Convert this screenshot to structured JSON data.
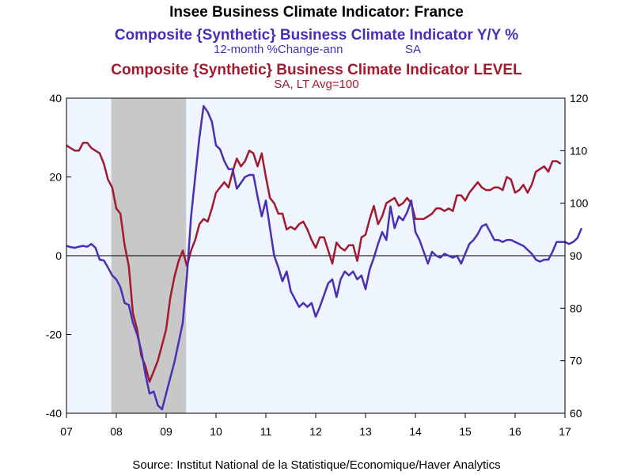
{
  "chart_data": {
    "type": "line",
    "title": "Insee Business Climate Indicator: France",
    "series": [
      {
        "name": "Composite {Synthetic} Business Climate Indicator Y/Y %",
        "subtitle_left": "12-month %Change-ann",
        "subtitle_right": "SA",
        "axis": "left",
        "color": "#4a2fb5",
        "values": [
          [
            2007.0,
            2.5
          ],
          [
            2007.083,
            2.2
          ],
          [
            2007.167,
            2.0
          ],
          [
            2007.25,
            2.3
          ],
          [
            2007.333,
            2.5
          ],
          [
            2007.417,
            2.3
          ],
          [
            2007.5,
            3.0
          ],
          [
            2007.583,
            2.0
          ],
          [
            2007.667,
            -1.0
          ],
          [
            2007.75,
            -1.2
          ],
          [
            2007.833,
            -3.0
          ],
          [
            2007.917,
            -5.0
          ],
          [
            2008.0,
            -6.0
          ],
          [
            2008.083,
            -8.0
          ],
          [
            2008.167,
            -12.0
          ],
          [
            2008.25,
            -12.5
          ],
          [
            2008.333,
            -17.0
          ],
          [
            2008.417,
            -20.0
          ],
          [
            2008.5,
            -24.0
          ],
          [
            2008.583,
            -30.0
          ],
          [
            2008.667,
            -35.0
          ],
          [
            2008.75,
            -34.5
          ],
          [
            2008.833,
            -38.0
          ],
          [
            2008.917,
            -39.0
          ],
          [
            2009.0,
            -35.0
          ],
          [
            2009.083,
            -31.0
          ],
          [
            2009.167,
            -27.0
          ],
          [
            2009.25,
            -22.0
          ],
          [
            2009.333,
            -17.0
          ],
          [
            2009.417,
            -5.0
          ],
          [
            2009.5,
            10.0
          ],
          [
            2009.583,
            20.0
          ],
          [
            2009.667,
            30.0
          ],
          [
            2009.75,
            38.0
          ],
          [
            2009.833,
            36.5
          ],
          [
            2009.917,
            34.0
          ],
          [
            2010.0,
            28.0
          ],
          [
            2010.083,
            27.0
          ],
          [
            2010.167,
            24.0
          ],
          [
            2010.25,
            22.0
          ],
          [
            2010.333,
            22.0
          ],
          [
            2010.417,
            17.0
          ],
          [
            2010.5,
            18.5
          ],
          [
            2010.583,
            20.0
          ],
          [
            2010.667,
            20.5
          ],
          [
            2010.75,
            20.5
          ],
          [
            2010.833,
            15.0
          ],
          [
            2010.917,
            10.0
          ],
          [
            2011.0,
            14.0
          ],
          [
            2011.083,
            7.0
          ],
          [
            2011.167,
            0.0
          ],
          [
            2011.25,
            -3.0
          ],
          [
            2011.333,
            -6.5
          ],
          [
            2011.417,
            -4.0
          ],
          [
            2011.5,
            -9.0
          ],
          [
            2011.583,
            -11.0
          ],
          [
            2011.667,
            -13.0
          ],
          [
            2011.75,
            -12.0
          ],
          [
            2011.833,
            -13.0
          ],
          [
            2011.917,
            -12.0
          ],
          [
            2012.0,
            -15.5
          ],
          [
            2012.083,
            -13.0
          ],
          [
            2012.167,
            -10.0
          ],
          [
            2012.25,
            -7.0
          ],
          [
            2012.333,
            -6.0
          ],
          [
            2012.417,
            -10.5
          ],
          [
            2012.5,
            -6.0
          ],
          [
            2012.583,
            -4.0
          ],
          [
            2012.667,
            -5.0
          ],
          [
            2012.75,
            -4.0
          ],
          [
            2012.833,
            -6.0
          ],
          [
            2012.917,
            -5.0
          ],
          [
            2013.0,
            -8.5
          ],
          [
            2013.083,
            -3.5
          ],
          [
            2013.167,
            -0.5
          ],
          [
            2013.25,
            3.0
          ],
          [
            2013.333,
            6.0
          ],
          [
            2013.417,
            4.0
          ],
          [
            2013.5,
            12.5
          ],
          [
            2013.583,
            7.0
          ],
          [
            2013.667,
            10.0
          ],
          [
            2013.75,
            9.0
          ],
          [
            2013.833,
            11.0
          ],
          [
            2013.917,
            14.0
          ],
          [
            2014.0,
            6.0
          ],
          [
            2014.083,
            4.0
          ],
          [
            2014.167,
            1.0
          ],
          [
            2014.25,
            -2.0
          ],
          [
            2014.333,
            1.0
          ],
          [
            2014.417,
            0.0
          ],
          [
            2014.5,
            -0.5
          ],
          [
            2014.583,
            0.5
          ],
          [
            2014.667,
            0.0
          ],
          [
            2014.75,
            -0.5
          ],
          [
            2014.833,
            0.0
          ],
          [
            2014.917,
            -2.0
          ],
          [
            2015.0,
            0.5
          ],
          [
            2015.083,
            3.0
          ],
          [
            2015.167,
            4.0
          ],
          [
            2015.25,
            5.5
          ],
          [
            2015.333,
            7.5
          ],
          [
            2015.417,
            8.0
          ],
          [
            2015.5,
            6.0
          ],
          [
            2015.583,
            4.0
          ],
          [
            2015.667,
            4.0
          ],
          [
            2015.75,
            3.5
          ],
          [
            2015.833,
            4.0
          ],
          [
            2015.917,
            4.0
          ],
          [
            2016.0,
            3.5
          ],
          [
            2016.083,
            3.0
          ],
          [
            2016.167,
            2.5
          ],
          [
            2016.25,
            1.5
          ],
          [
            2016.333,
            0.5
          ],
          [
            2016.417,
            -1.0
          ],
          [
            2016.5,
            -1.5
          ],
          [
            2016.583,
            -1.0
          ],
          [
            2016.667,
            -1.0
          ],
          [
            2016.75,
            1.0
          ],
          [
            2016.833,
            3.5
          ],
          [
            2016.917,
            3.5
          ],
          [
            2017.0,
            3.5
          ],
          [
            2017.083,
            3.0
          ],
          [
            2017.167,
            3.5
          ],
          [
            2017.25,
            4.5
          ],
          [
            2017.333,
            7.0
          ]
        ]
      },
      {
        "name": "Composite {Synthetic} Business Climate Indicator LEVEL",
        "subtitle": "SA, LT Avg=100",
        "axis": "right",
        "color": "#a3192e",
        "values": [
          [
            2007.0,
            111.0
          ],
          [
            2007.083,
            110.5
          ],
          [
            2007.167,
            110.0
          ],
          [
            2007.25,
            110.0
          ],
          [
            2007.333,
            111.5
          ],
          [
            2007.417,
            111.5
          ],
          [
            2007.5,
            110.5
          ],
          [
            2007.583,
            110.0
          ],
          [
            2007.667,
            109.5
          ],
          [
            2007.75,
            107.5
          ],
          [
            2007.833,
            104.5
          ],
          [
            2007.917,
            103.0
          ],
          [
            2008.0,
            99.0
          ],
          [
            2008.083,
            98.0
          ],
          [
            2008.167,
            92.0
          ],
          [
            2008.25,
            88.0
          ],
          [
            2008.333,
            79.0
          ],
          [
            2008.417,
            76.0
          ],
          [
            2008.5,
            71.0
          ],
          [
            2008.583,
            69.0
          ],
          [
            2008.667,
            66.0
          ],
          [
            2008.75,
            68.0
          ],
          [
            2008.833,
            70.0
          ],
          [
            2008.917,
            73.0
          ],
          [
            2009.0,
            76.0
          ],
          [
            2009.083,
            82.0
          ],
          [
            2009.167,
            86.0
          ],
          [
            2009.25,
            89.0
          ],
          [
            2009.333,
            91.0
          ],
          [
            2009.417,
            88.0
          ],
          [
            2009.5,
            91.0
          ],
          [
            2009.583,
            93.0
          ],
          [
            2009.667,
            96.0
          ],
          [
            2009.75,
            97.0
          ],
          [
            2009.833,
            96.5
          ],
          [
            2009.917,
            99.0
          ],
          [
            2010.0,
            102.0
          ],
          [
            2010.083,
            103.0
          ],
          [
            2010.167,
            104.0
          ],
          [
            2010.25,
            103.0
          ],
          [
            2010.333,
            106.0
          ],
          [
            2010.417,
            108.5
          ],
          [
            2010.5,
            107.0
          ],
          [
            2010.583,
            108.0
          ],
          [
            2010.667,
            110.0
          ],
          [
            2010.75,
            109.5
          ],
          [
            2010.833,
            107.0
          ],
          [
            2010.917,
            109.5
          ],
          [
            2011.0,
            105.0
          ],
          [
            2011.083,
            101.0
          ],
          [
            2011.167,
            100.0
          ],
          [
            2011.25,
            98.0
          ],
          [
            2011.333,
            98.0
          ],
          [
            2011.417,
            95.0
          ],
          [
            2011.5,
            95.5
          ],
          [
            2011.583,
            95.0
          ],
          [
            2011.667,
            96.0
          ],
          [
            2011.75,
            96.5
          ],
          [
            2011.833,
            95.0
          ],
          [
            2011.917,
            93.0
          ],
          [
            2012.0,
            91.5
          ],
          [
            2012.083,
            93.5
          ],
          [
            2012.167,
            93.5
          ],
          [
            2012.25,
            91.0
          ],
          [
            2012.333,
            88.5
          ],
          [
            2012.417,
            92.5
          ],
          [
            2012.5,
            91.5
          ],
          [
            2012.583,
            91.0
          ],
          [
            2012.667,
            92.0
          ],
          [
            2012.75,
            92.0
          ],
          [
            2012.833,
            89.0
          ],
          [
            2012.917,
            93.5
          ],
          [
            2013.0,
            94.0
          ],
          [
            2013.083,
            97.0
          ],
          [
            2013.167,
            99.5
          ],
          [
            2013.25,
            96.0
          ],
          [
            2013.333,
            97.5
          ],
          [
            2013.417,
            100.0
          ],
          [
            2013.5,
            100.5
          ],
          [
            2013.583,
            101.0
          ],
          [
            2013.667,
            99.5
          ],
          [
            2013.75,
            100.0
          ],
          [
            2013.833,
            101.0
          ],
          [
            2013.917,
            100.0
          ],
          [
            2014.0,
            97.0
          ],
          [
            2014.083,
            97.0
          ],
          [
            2014.167,
            97.0
          ],
          [
            2014.25,
            97.5
          ],
          [
            2014.333,
            98.0
          ],
          [
            2014.417,
            99.0
          ],
          [
            2014.5,
            99.0
          ],
          [
            2014.583,
            98.5
          ],
          [
            2014.667,
            99.0
          ],
          [
            2014.75,
            98.5
          ],
          [
            2014.833,
            101.5
          ],
          [
            2014.917,
            101.5
          ],
          [
            2015.0,
            100.5
          ],
          [
            2015.083,
            102.0
          ],
          [
            2015.167,
            103.0
          ],
          [
            2015.25,
            104.0
          ],
          [
            2015.333,
            103.0
          ],
          [
            2015.417,
            102.5
          ],
          [
            2015.5,
            102.5
          ],
          [
            2015.583,
            103.0
          ],
          [
            2015.667,
            103.0
          ],
          [
            2015.75,
            102.5
          ],
          [
            2015.833,
            105.0
          ],
          [
            2015.917,
            104.5
          ],
          [
            2016.0,
            102.0
          ],
          [
            2016.083,
            102.5
          ],
          [
            2016.167,
            103.5
          ],
          [
            2016.25,
            102.0
          ],
          [
            2016.333,
            103.5
          ],
          [
            2016.417,
            106.0
          ],
          [
            2016.5,
            106.5
          ],
          [
            2016.583,
            107.0
          ],
          [
            2016.667,
            106.0
          ],
          [
            2016.75,
            108.0
          ],
          [
            2016.833,
            108.0
          ],
          [
            2016.917,
            107.5
          ]
        ]
      }
    ],
    "x_ticks": [
      "07",
      "08",
      "09",
      "10",
      "11",
      "12",
      "13",
      "14",
      "15",
      "16",
      "17"
    ],
    "xlim": [
      2007.0,
      2017.0
    ],
    "ylim_left": [
      -40,
      40
    ],
    "yticks_left": [
      "40",
      "20",
      "0",
      "-20",
      "-40"
    ],
    "ylim_right": [
      60,
      120
    ],
    "yticks_right": [
      "120",
      "110",
      "100",
      "90",
      "80",
      "70",
      "60"
    ],
    "recession": [
      2007.9,
      2009.4
    ],
    "zero_line": 0,
    "source": "Source:  Institut National de la Statistique/Economique/Haver Analytics"
  }
}
